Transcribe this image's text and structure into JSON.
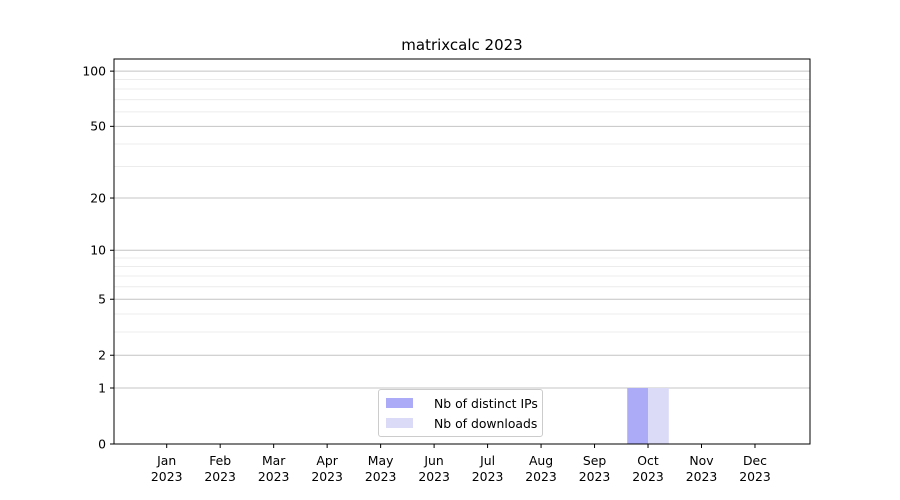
{
  "title": "matrixcalc 2023",
  "chart_data": {
    "type": "bar",
    "title": "matrixcalc 2023",
    "categories": [
      "Jan 2023",
      "Feb 2023",
      "Mar 2023",
      "Apr 2023",
      "May 2023",
      "Jun 2023",
      "Jul 2023",
      "Aug 2023",
      "Sep 2023",
      "Oct 2023",
      "Nov 2023",
      "Dec 2023"
    ],
    "months": [
      "Jan",
      "Feb",
      "Mar",
      "Apr",
      "May",
      "Jun",
      "Jul",
      "Aug",
      "Sep",
      "Oct",
      "Nov",
      "Dec"
    ],
    "year_label": "2023",
    "series": [
      {
        "name": "Nb of distinct IPs",
        "color": "#ababf8",
        "values": [
          0,
          0,
          0,
          0,
          0,
          0,
          0,
          0,
          0,
          1,
          0,
          0
        ]
      },
      {
        "name": "Nb of downloads",
        "color": "#dbdbf8",
        "values": [
          0,
          0,
          0,
          0,
          0,
          0,
          0,
          0,
          0,
          1,
          0,
          0
        ]
      }
    ],
    "xlabel": "",
    "ylabel": "",
    "y_scale": "log10(value+1)",
    "y_major_ticks": [
      0,
      1,
      2,
      5,
      10,
      20,
      50,
      100
    ],
    "y_minor_gridlines": [
      3,
      4,
      6,
      7,
      8,
      9,
      30,
      40,
      60,
      70,
      80,
      90
    ],
    "ylim": [
      0,
      117
    ],
    "grid": "on",
    "legend_position": "lower center"
  },
  "colors": {
    "bar_distinct_ips": "#ababf8",
    "bar_downloads": "#dbdbf8",
    "grid_major": "#c4c4c4",
    "grid_minor": "#ececec",
    "axis": "#000000",
    "legend_border": "#cccccc",
    "background": "#ffffff"
  }
}
